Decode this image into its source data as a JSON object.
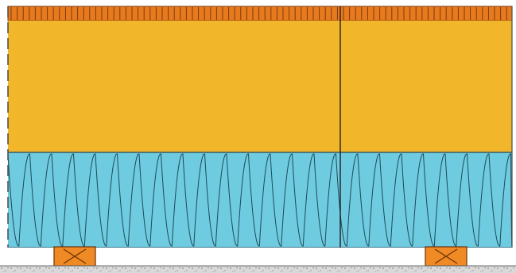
{
  "diagram": {
    "kind": "wall-section",
    "layers": [
      {
        "name": "facing-strip",
        "pattern": "vertical-stripes",
        "color": "#e87a1e",
        "stripe_color": "#7a3a10"
      },
      {
        "name": "board-layer",
        "pattern": "solid",
        "color": "#f2b62a"
      },
      {
        "name": "insulation-layer",
        "pattern": "zigzag",
        "color": "#6fcbe0",
        "stroke_color": "#1d4a5a"
      },
      {
        "name": "cavity",
        "pattern": "solid",
        "color": "#ffffff"
      },
      {
        "name": "base-layer",
        "pattern": "speckled",
        "color": "#d9d9d9"
      }
    ],
    "battens": {
      "count": 2,
      "color": "#f08a24",
      "cross_color": "#6a3008"
    },
    "joint": {
      "present": true,
      "color": "#1f1f1f"
    },
    "outline_color": "#4a4a4a"
  }
}
